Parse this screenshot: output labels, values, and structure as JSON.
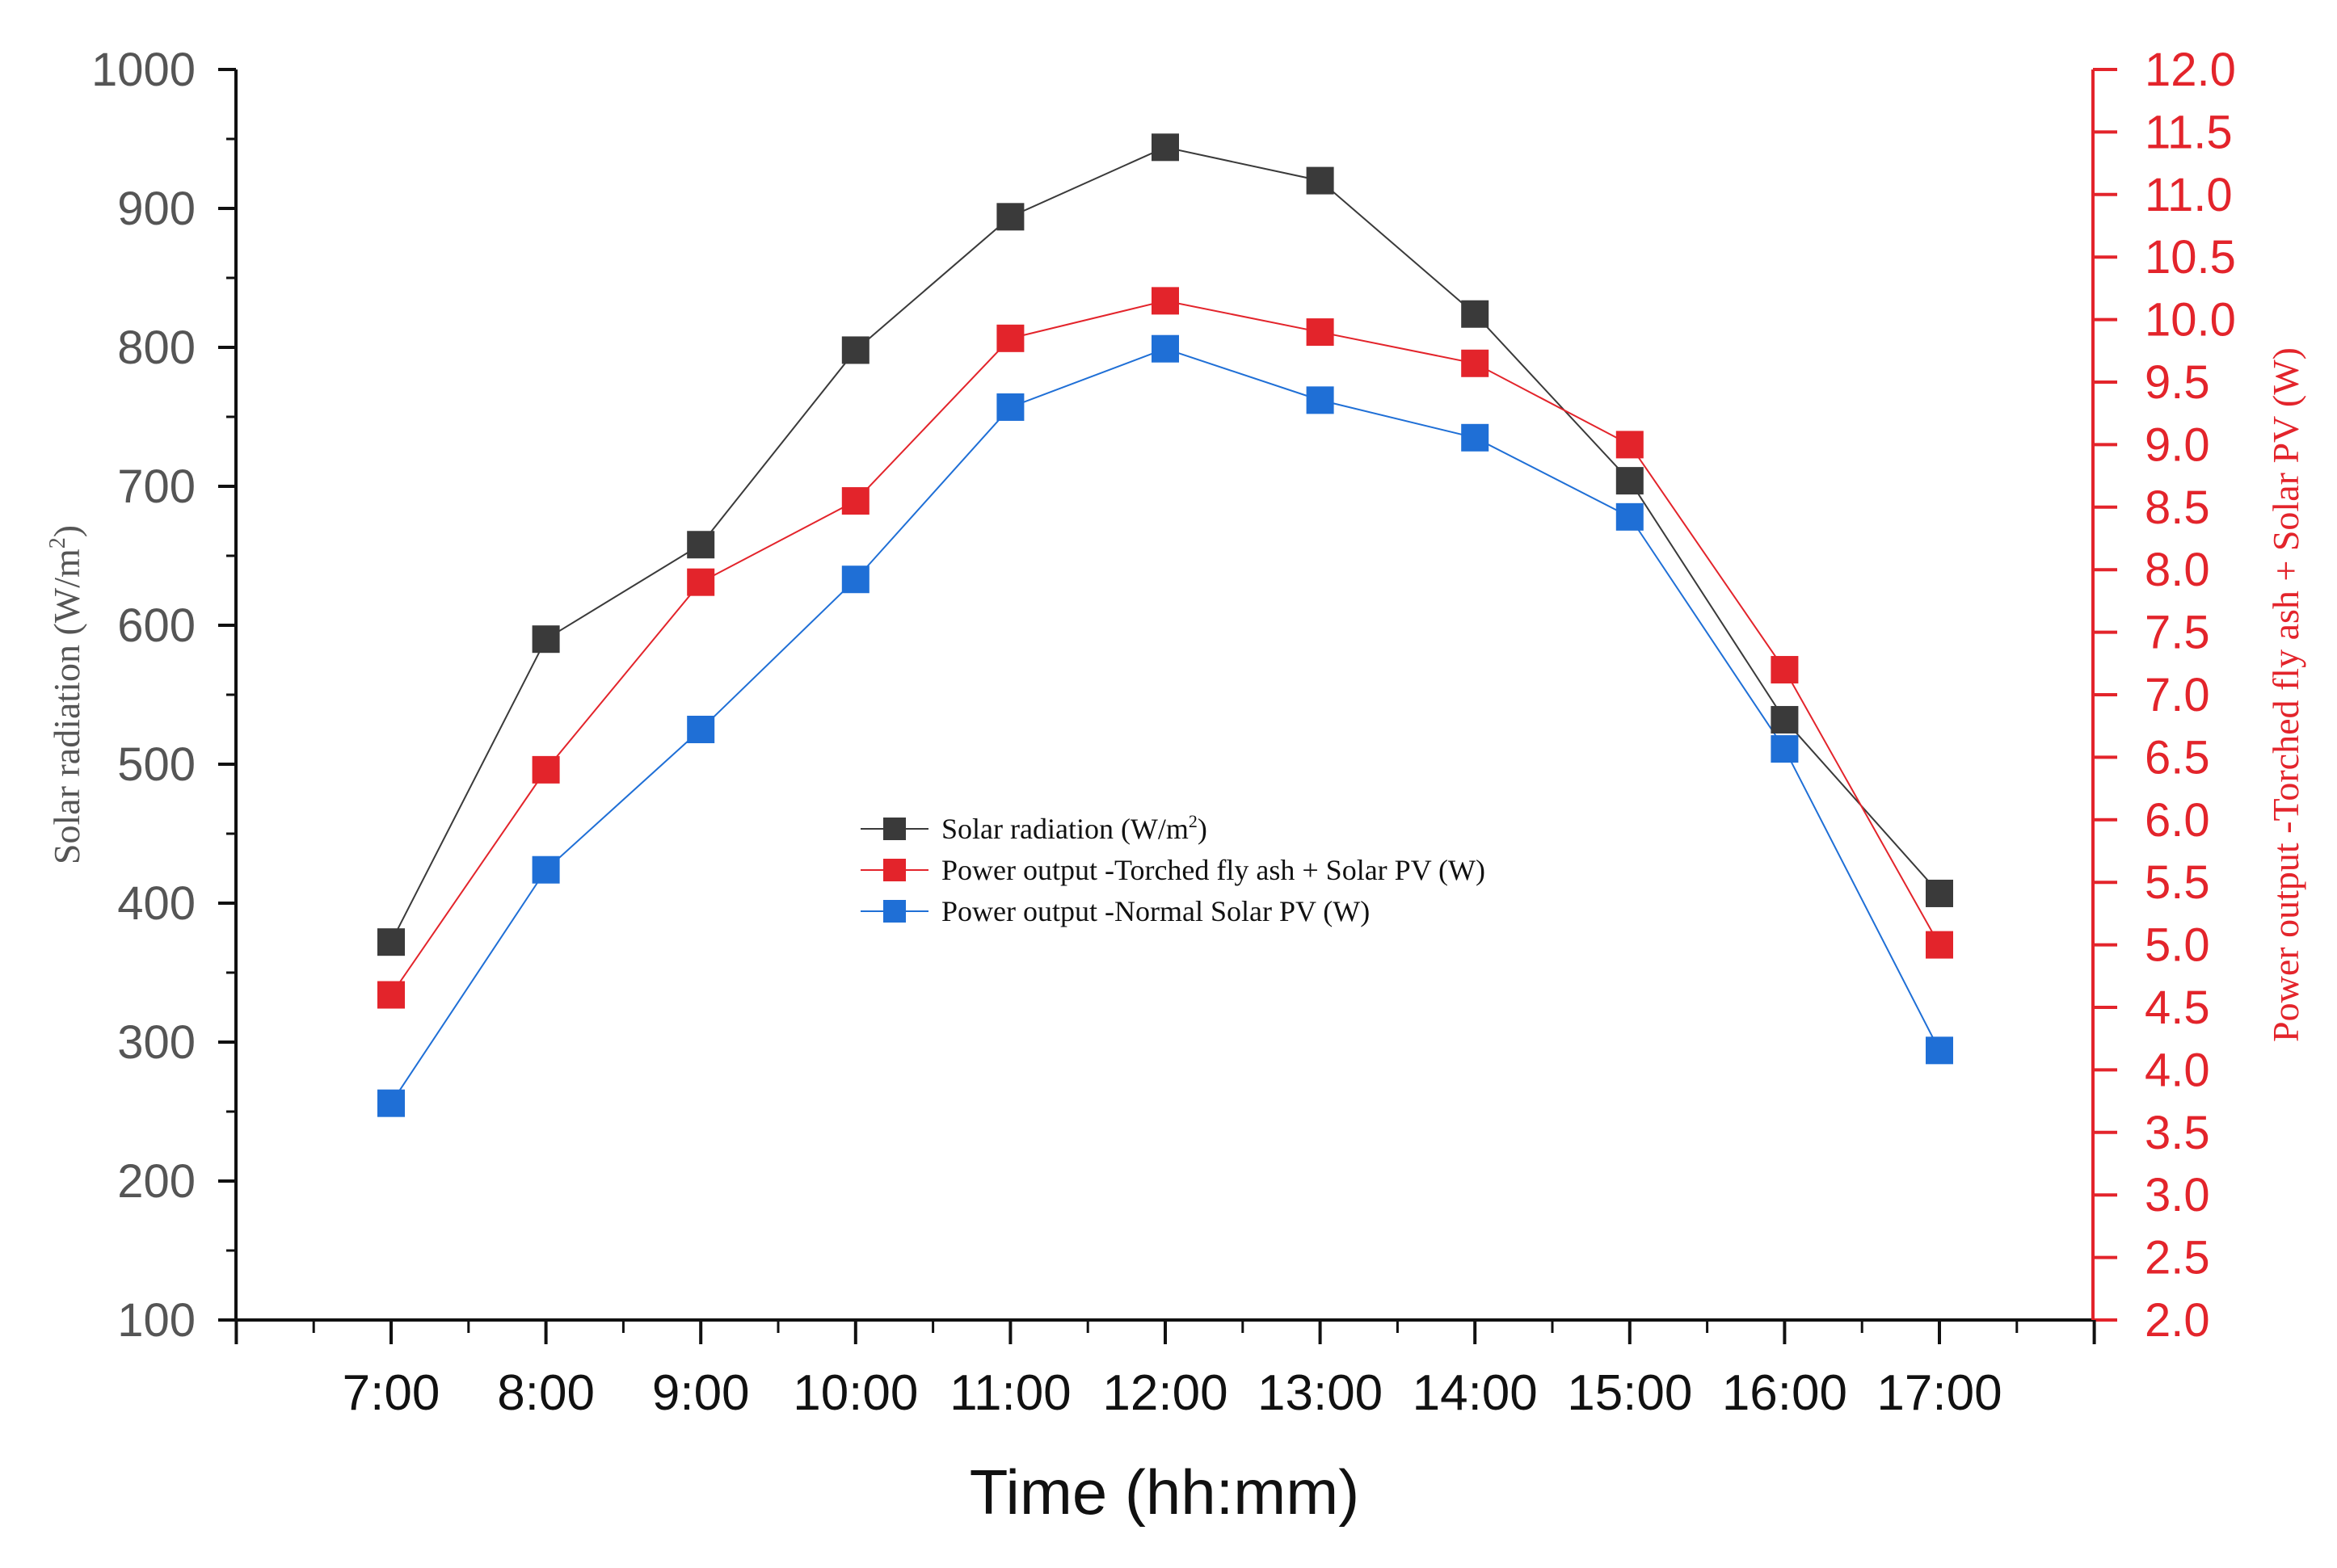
{
  "chart_data": {
    "type": "line",
    "x_label": "Time (hh:mm)",
    "y_label_left": "Solar radiation (W/m",
    "y_label_left_sup": "2",
    "y_label_left_suffix": ")",
    "y_label_right": "Power output -Torched fly ash + Solar PV (W)",
    "categories": [
      "7:00",
      "8:00",
      "9:00",
      "10:00",
      "11:00",
      "12:00",
      "13:00",
      "14:00",
      "15:00",
      "16:00",
      "17:00"
    ],
    "ylim_left": [
      100,
      1000
    ],
    "ylim_right": [
      2.0,
      12.0
    ],
    "left_ticks": [
      "100",
      "200",
      "300",
      "400",
      "500",
      "600",
      "700",
      "800",
      "900",
      "1000"
    ],
    "right_ticks": [
      "2.0",
      "2.5",
      "3.0",
      "3.5",
      "4.0",
      "4.5",
      "5.0",
      "5.5",
      "6.0",
      "6.5",
      "7.0",
      "7.5",
      "8.0",
      "8.5",
      "9.0",
      "9.5",
      "10.0",
      "10.5",
      "11.0",
      "11.5",
      "12.0"
    ],
    "series": [
      {
        "name": "Solar radiation (W/m",
        "name_sup": "2",
        "name_suffix": ")",
        "axis": "left",
        "color": "#3a3a3a",
        "values": [
          372,
          590,
          658,
          798,
          894,
          944,
          920,
          824,
          704,
          532,
          407
        ]
      },
      {
        "name": "Power output -Torched fly ash + Solar PV (W)",
        "name_sup": "",
        "name_suffix": "",
        "axis": "right",
        "color": "#e3242b",
        "values": [
          4.6,
          6.4,
          7.9,
          8.55,
          9.85,
          10.15,
          9.9,
          9.65,
          9.0,
          7.2,
          5.0
        ]
      },
      {
        "name": "Power output -Normal Solar PV (W)",
        "name_sup": "",
        "name_suffix": "",
        "axis": "left",
        "color": "#1f6fd6",
        "values": [
          256,
          424,
          525,
          633,
          757,
          799,
          762,
          735,
          678,
          511,
          294
        ]
      }
    ],
    "legend_position": "center"
  }
}
